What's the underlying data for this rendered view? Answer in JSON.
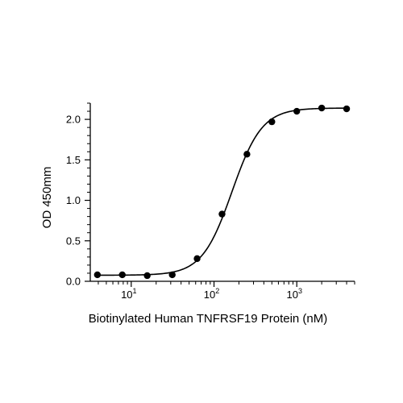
{
  "chart_data": {
    "type": "scatter",
    "title": "",
    "xlabel": "Biotinylated Human TNFRSF19 Protein (nM)",
    "ylabel": "OD 450mm",
    "xscale": "log",
    "xlim": [
      3.2,
      5000
    ],
    "ylim": [
      0,
      2.2
    ],
    "x_ticks": [
      {
        "value": 10,
        "base": "10",
        "exp": "1"
      },
      {
        "value": 100,
        "base": "10",
        "exp": "2"
      },
      {
        "value": 1000,
        "base": "10",
        "exp": "3"
      }
    ],
    "y_ticks": [
      {
        "value": 0,
        "label": "0.0"
      },
      {
        "value": 0.5,
        "label": "0.5"
      },
      {
        "value": 1.0,
        "label": "1.0"
      },
      {
        "value": 1.5,
        "label": "1.5"
      },
      {
        "value": 2.0,
        "label": "2.0"
      }
    ],
    "grid": false,
    "series": [
      {
        "points": [
          {
            "x": 3.9,
            "y": 0.08
          },
          {
            "x": 7.8,
            "y": 0.08
          },
          {
            "x": 15.6,
            "y": 0.07
          },
          {
            "x": 31.3,
            "y": 0.08
          },
          {
            "x": 62.5,
            "y": 0.28
          },
          {
            "x": 125,
            "y": 0.83
          },
          {
            "x": 250,
            "y": 1.57
          },
          {
            "x": 500,
            "y": 1.97
          },
          {
            "x": 1000,
            "y": 2.1
          },
          {
            "x": 2000,
            "y": 2.14
          },
          {
            "x": 4000,
            "y": 2.13
          }
        ],
        "fit": {
          "model": "4PL",
          "bottom": 0.075,
          "top": 2.14,
          "ec50": 165,
          "hill": 2.4
        },
        "color": "#000000"
      }
    ]
  }
}
